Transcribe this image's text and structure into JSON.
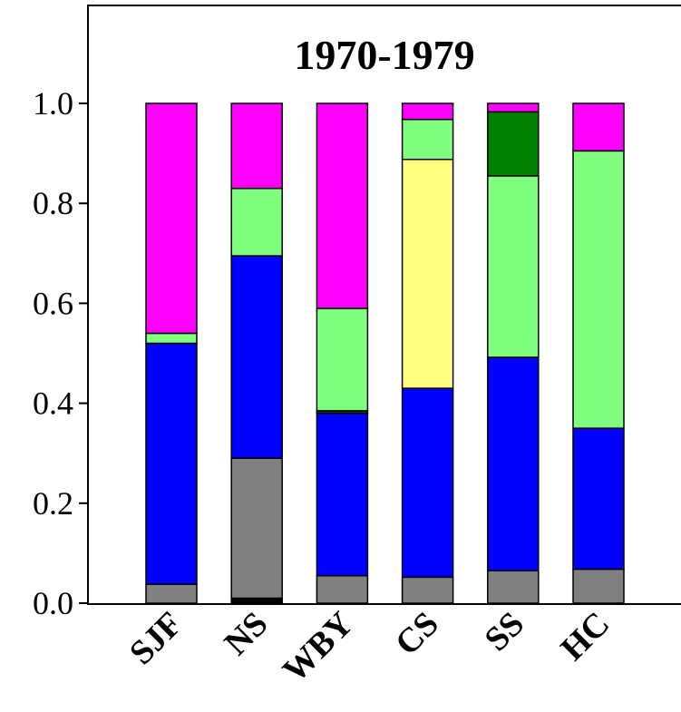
{
  "chart_data": {
    "type": "bar",
    "stacked": true,
    "title": "1970-1979",
    "xlabel": "",
    "ylabel": "",
    "ylim": [
      0,
      1.0
    ],
    "yticks": [
      "0.0",
      "0.2",
      "0.4",
      "0.6",
      "0.8",
      "1.0"
    ],
    "categories": [
      "SJF",
      "NS",
      "WBY",
      "CS",
      "SS",
      "HC"
    ],
    "series": [
      {
        "color": "#000000",
        "values": [
          0.0,
          0.01,
          0.0,
          0.0,
          0.0,
          0.0
        ]
      },
      {
        "color": "#808080",
        "values": [
          0.038,
          0.28,
          0.055,
          0.052,
          0.065,
          0.068
        ]
      },
      {
        "color": "#0000ff",
        "values": [
          0.482,
          0.405,
          0.325,
          0.378,
          0.427,
          0.282
        ]
      },
      {
        "color": "#004000",
        "values": [
          0.0,
          0.0,
          0.005,
          0.0,
          0.0,
          0.0
        ]
      },
      {
        "color": "#ffff80",
        "values": [
          0.0,
          0.0,
          0.0,
          0.458,
          0.0,
          0.0
        ]
      },
      {
        "color": "#80ff80",
        "values": [
          0.02,
          0.135,
          0.205,
          0.08,
          0.363,
          0.555
        ]
      },
      {
        "color": "#008000",
        "values": [
          0.0,
          0.0,
          0.0,
          0.0,
          0.128,
          0.0
        ]
      },
      {
        "color": "#ff00ff",
        "values": [
          0.46,
          0.17,
          0.41,
          0.032,
          0.017,
          0.095
        ]
      }
    ],
    "grid": false,
    "legend": "none"
  }
}
